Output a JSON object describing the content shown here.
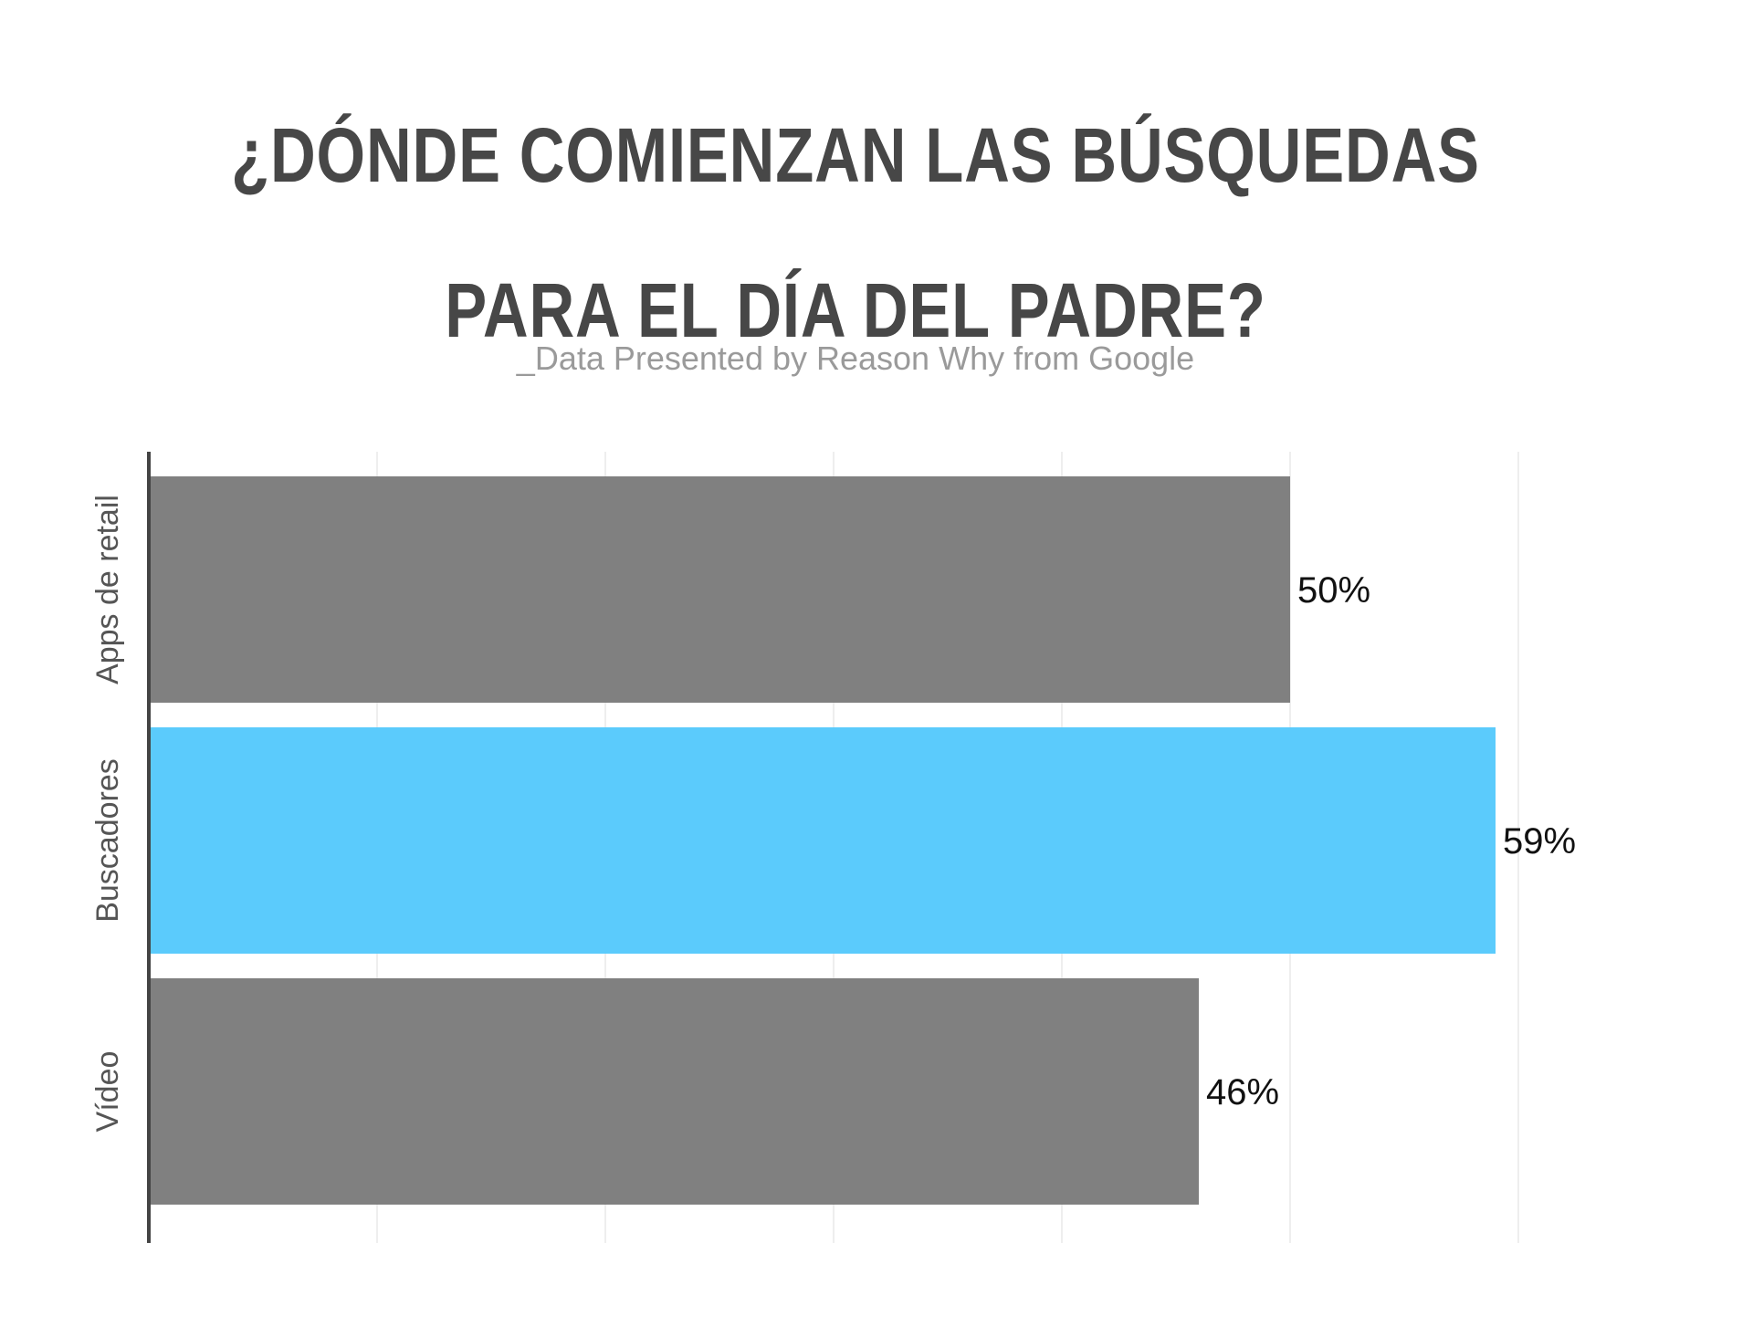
{
  "title_lines": [
    "¿DÓNDE COMIENZAN LAS BÚSQUEDAS",
    "PARA EL DÍA DEL PADRE?"
  ],
  "subtitle": "_Data Presented by Reason Why from Google",
  "chart_data": {
    "type": "bar",
    "orientation": "horizontal",
    "title": "¿DÓNDE COMIENZAN LAS BÚSQUEDAS PARA EL DÍA DEL PADRE?",
    "subtitle": "_Data Presented by Reason Why from Google",
    "categories": [
      "Apps de retail",
      "Buscadores",
      "Vídeo"
    ],
    "values": [
      50,
      59,
      46
    ],
    "data_labels": [
      "50%",
      "59%",
      "46%"
    ],
    "colors": [
      "#808080",
      "#5bcbfc",
      "#808080"
    ],
    "xlim": [
      0,
      60
    ],
    "grid": true,
    "xlabel": "",
    "ylabel": ""
  }
}
